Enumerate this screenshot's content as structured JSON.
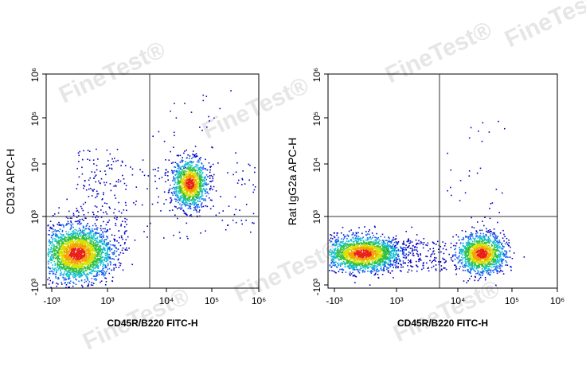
{
  "watermark": "FineTest®",
  "panels": [
    {
      "y_axis_label": "CD31 APC-H",
      "x_axis_label": "CD45R/B220 FITC-H",
      "x_tick_labels": [
        "-10³",
        "10³",
        "10⁴",
        "10⁵",
        "10⁶"
      ],
      "y_tick_labels": [
        "10⁶",
        "10⁵",
        "10⁴",
        "10³",
        "-10³"
      ]
    },
    {
      "y_axis_label": "Rat IgG2a APC-H",
      "x_axis_label": "CD45R/B220 FITC-H",
      "x_tick_labels": [
        "-10³",
        "10³",
        "10⁴",
        "10⁵",
        "10⁶"
      ],
      "y_tick_labels": [
        "10⁶",
        "10⁵",
        "10⁴",
        "10³",
        "-10³"
      ]
    }
  ]
}
